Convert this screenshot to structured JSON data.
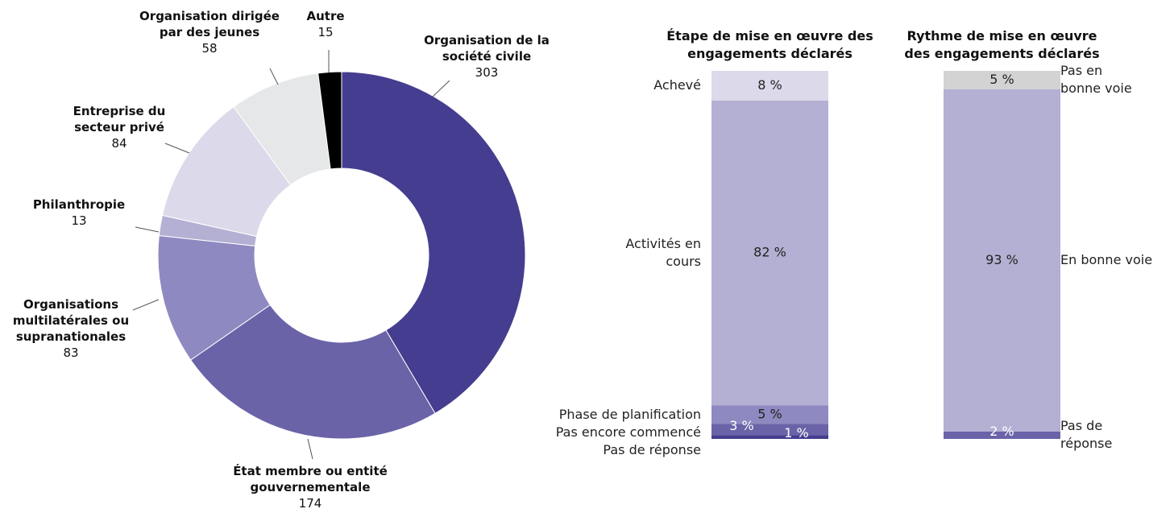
{
  "chart_data": [
    {
      "type": "pie",
      "categories": [
        "Organisation de la société civile",
        "État membre ou entité gouvernementale",
        "Organisations multilatérales ou supranationales",
        "Philanthropie",
        "Entreprise du secteur privé",
        "Organisation dirigée par des jeunes",
        "Autre"
      ],
      "values": [
        303,
        174,
        83,
        13,
        84,
        58,
        15
      ],
      "colors": [
        "#453d8f",
        "#6a63a8",
        "#8e89c0",
        "#b3b0d3",
        "#dcd9ea",
        "#e6e7e8",
        "#000000"
      ]
    },
    {
      "type": "stacked_bar",
      "title": "Étape de mise en œuvre des engagements déclarés",
      "categories": [
        "Achevé",
        "Activités en cours",
        "Phase de planification",
        "Pas encore commencé",
        "Pas de réponse"
      ],
      "values": [
        8,
        82,
        5,
        3,
        1
      ],
      "value_labels": [
        "8 %",
        "82 %",
        "5 %",
        "3 %",
        "1 %"
      ],
      "colors": [
        "#dcd9ea",
        "#b3b0d3",
        "#8e89c0",
        "#6a63a8",
        "#453d8f"
      ],
      "label_side": "left"
    },
    {
      "type": "stacked_bar",
      "title": "Rythme de mise en œuvre des engagements déclarés",
      "categories": [
        "Pas en bonne voie",
        "En bonne voie",
        "Pas de réponse"
      ],
      "values": [
        5,
        93,
        2
      ],
      "value_labels": [
        "5 %",
        "93 %",
        "2 %"
      ],
      "colors": [
        "#d3d3d3",
        "#b3b0d3",
        "#6a63a8"
      ],
      "label_side": "right"
    }
  ]
}
